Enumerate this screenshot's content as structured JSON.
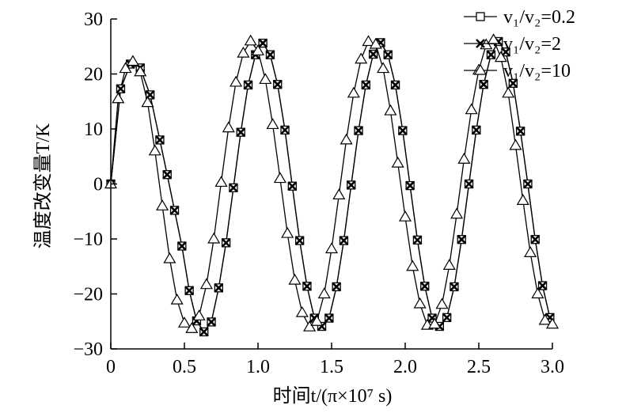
{
  "chart_data": {
    "type": "line",
    "title": "",
    "xlabel": "时间t/(π×10⁷ s)",
    "ylabel": "温度改变量T/K",
    "xlim": [
      0,
      3.0
    ],
    "ylim": [
      -30,
      30
    ],
    "xticks": [
      "0",
      "0.5",
      "1.0",
      "1.5",
      "2.0",
      "2.5",
      "3.0"
    ],
    "yticks": [
      "−30",
      "−20",
      "−10",
      "0",
      "10",
      "20",
      "30"
    ],
    "legend_position": "top-right",
    "grid": false,
    "series": [
      {
        "name": "v₁/v₂=0.2",
        "marker": "square",
        "x": [
          0,
          0.067,
          0.133,
          0.2,
          0.267,
          0.333,
          0.383,
          0.433,
          0.483,
          0.533,
          0.583,
          0.633,
          0.683,
          0.733,
          0.783,
          0.833,
          0.883,
          0.933,
          0.983,
          1.033,
          1.083,
          1.133,
          1.183,
          1.233,
          1.283,
          1.333,
          1.383,
          1.433,
          1.483,
          1.533,
          1.583,
          1.633,
          1.683,
          1.733,
          1.783,
          1.833,
          1.883,
          1.933,
          1.983,
          2.033,
          2.083,
          2.133,
          2.183,
          2.233,
          2.283,
          2.333,
          2.383,
          2.433,
          2.483,
          2.533,
          2.583,
          2.633,
          2.683,
          2.733,
          2.783,
          2.833,
          2.883,
          2.933,
          2.983
        ],
        "y": [
          0,
          17.3,
          21.8,
          21.1,
          16.2,
          8.0,
          1.7,
          -4.8,
          -11.3,
          -19.4,
          -24.9,
          -26.9,
          -25.1,
          -18.9,
          -10.7,
          -0.7,
          9.4,
          18.0,
          23.5,
          25.6,
          23.5,
          18.1,
          9.8,
          -0.4,
          -10.3,
          -18.6,
          -24.4,
          -25.9,
          -24.4,
          -18.7,
          -10.3,
          -0.2,
          9.7,
          18.0,
          23.6,
          25.7,
          23.5,
          18.0,
          9.7,
          -0.3,
          -10.2,
          -18.6,
          -24.4,
          -25.9,
          -24.3,
          -18.7,
          -10.1,
          0,
          9.8,
          18.1,
          23.5,
          25.9,
          24.0,
          18.3,
          9.6,
          0,
          -10.1,
          -18.5,
          -24.3
        ]
      },
      {
        "name": "v₁/v₂=2",
        "marker": "x",
        "x": [
          0,
          0.067,
          0.133,
          0.2,
          0.267,
          0.333,
          0.383,
          0.433,
          0.483,
          0.533,
          0.583,
          0.633,
          0.683,
          0.733,
          0.783,
          0.833,
          0.883,
          0.933,
          0.983,
          1.033,
          1.083,
          1.133,
          1.183,
          1.233,
          1.283,
          1.333,
          1.383,
          1.433,
          1.483,
          1.533,
          1.583,
          1.633,
          1.683,
          1.733,
          1.783,
          1.833,
          1.883,
          1.933,
          1.983,
          2.033,
          2.083,
          2.133,
          2.183,
          2.233,
          2.283,
          2.333,
          2.383,
          2.433,
          2.483,
          2.533,
          2.583,
          2.633,
          2.683,
          2.733,
          2.783,
          2.833,
          2.883,
          2.933,
          2.983
        ],
        "y": [
          0,
          17.3,
          21.8,
          21.1,
          16.2,
          8.0,
          1.7,
          -4.8,
          -11.3,
          -19.4,
          -24.9,
          -26.9,
          -25.1,
          -18.9,
          -10.7,
          -0.7,
          9.4,
          18.0,
          23.5,
          25.6,
          23.5,
          18.1,
          9.8,
          -0.4,
          -10.3,
          -18.6,
          -24.4,
          -25.9,
          -24.4,
          -18.7,
          -10.3,
          -0.2,
          9.7,
          18.0,
          23.6,
          25.7,
          23.5,
          18.0,
          9.7,
          -0.3,
          -10.2,
          -18.6,
          -24.4,
          -25.9,
          -24.3,
          -18.7,
          -10.1,
          0,
          9.8,
          18.1,
          23.5,
          25.9,
          24.0,
          18.3,
          9.6,
          0,
          -10.1,
          -18.5,
          -24.3
        ]
      },
      {
        "name": "v₁/v₂=10",
        "marker": "triangle",
        "x": [
          0,
          0.05,
          0.1,
          0.15,
          0.2,
          0.25,
          0.3,
          0.35,
          0.4,
          0.45,
          0.5,
          0.55,
          0.6,
          0.65,
          0.7,
          0.75,
          0.8,
          0.85,
          0.9,
          0.95,
          1.0,
          1.05,
          1.1,
          1.15,
          1.2,
          1.25,
          1.3,
          1.35,
          1.4,
          1.45,
          1.5,
          1.55,
          1.6,
          1.65,
          1.7,
          1.75,
          1.8,
          1.85,
          1.9,
          1.95,
          2.0,
          2.05,
          2.1,
          2.15,
          2.2,
          2.25,
          2.3,
          2.35,
          2.4,
          2.45,
          2.5,
          2.55,
          2.6,
          2.65,
          2.7,
          2.75,
          2.8,
          2.85,
          2.9,
          2.95,
          3.0
        ],
        "y": [
          0,
          15.5,
          21.0,
          22.3,
          20.4,
          14.8,
          6.0,
          -4.0,
          -13.6,
          -21.1,
          -25.3,
          -26.3,
          -24.0,
          -18.3,
          -10.0,
          0.3,
          10.2,
          18.5,
          23.8,
          26.0,
          24.2,
          19.0,
          10.8,
          1.0,
          -9.0,
          -17.5,
          -23.4,
          -26.0,
          -25.0,
          -20.0,
          -11.8,
          -2.0,
          8.0,
          16.5,
          22.7,
          25.9,
          25.4,
          21.0,
          13.3,
          3.8,
          -6.0,
          -15.0,
          -21.8,
          -25.7,
          -25.5,
          -21.9,
          -14.8,
          -5.5,
          4.5,
          13.5,
          20.7,
          25.3,
          26.2,
          23.0,
          16.5,
          7.0,
          -3.0,
          -12.5,
          -20.0,
          -24.8,
          -25.5
        ]
      }
    ]
  }
}
